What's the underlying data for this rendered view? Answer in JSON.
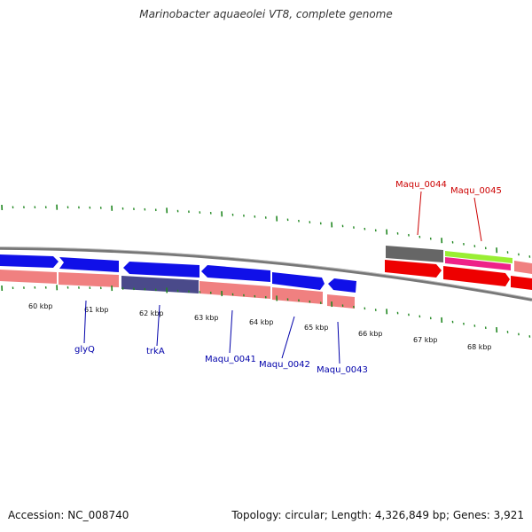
{
  "title": "Marinobacter aquaeolei VT8, complete genome",
  "footer": {
    "accession": "Accession: NC_008740",
    "topology": "Topology: circular; Length: 4,326,849 bp; Genes: 3,921"
  },
  "colors": {
    "forward_gene": "#0000ee",
    "reverse_gene": "#f08080",
    "highlight_reverse": "#4a4a8a",
    "grey_gene": "#666666",
    "red_gene": "#ee0000",
    "green_gene": "#99ee33",
    "magenta_gene": "#ee2288",
    "backbone": "#888888",
    "tick": "#228822",
    "label_blue": "#0000aa",
    "label_red": "#cc0000"
  },
  "scale": {
    "unit": "kbp",
    "labels": [
      "60 kbp",
      "61 kbp",
      "62 kbp",
      "63 kbp",
      "64 kbp",
      "65 kbp",
      "66 kbp",
      "67 kbp",
      "68 kbp"
    ]
  },
  "gene_labels": [
    {
      "name": "glyQ",
      "color": "blue"
    },
    {
      "name": "trkA",
      "color": "blue"
    },
    {
      "name": "Maqu_0041",
      "color": "blue"
    },
    {
      "name": "Maqu_0042",
      "color": "blue"
    },
    {
      "name": "Maqu_0043",
      "color": "blue"
    },
    {
      "name": "Maqu_0044",
      "color": "red"
    },
    {
      "name": "Maqu_0045",
      "color": "red"
    }
  ]
}
